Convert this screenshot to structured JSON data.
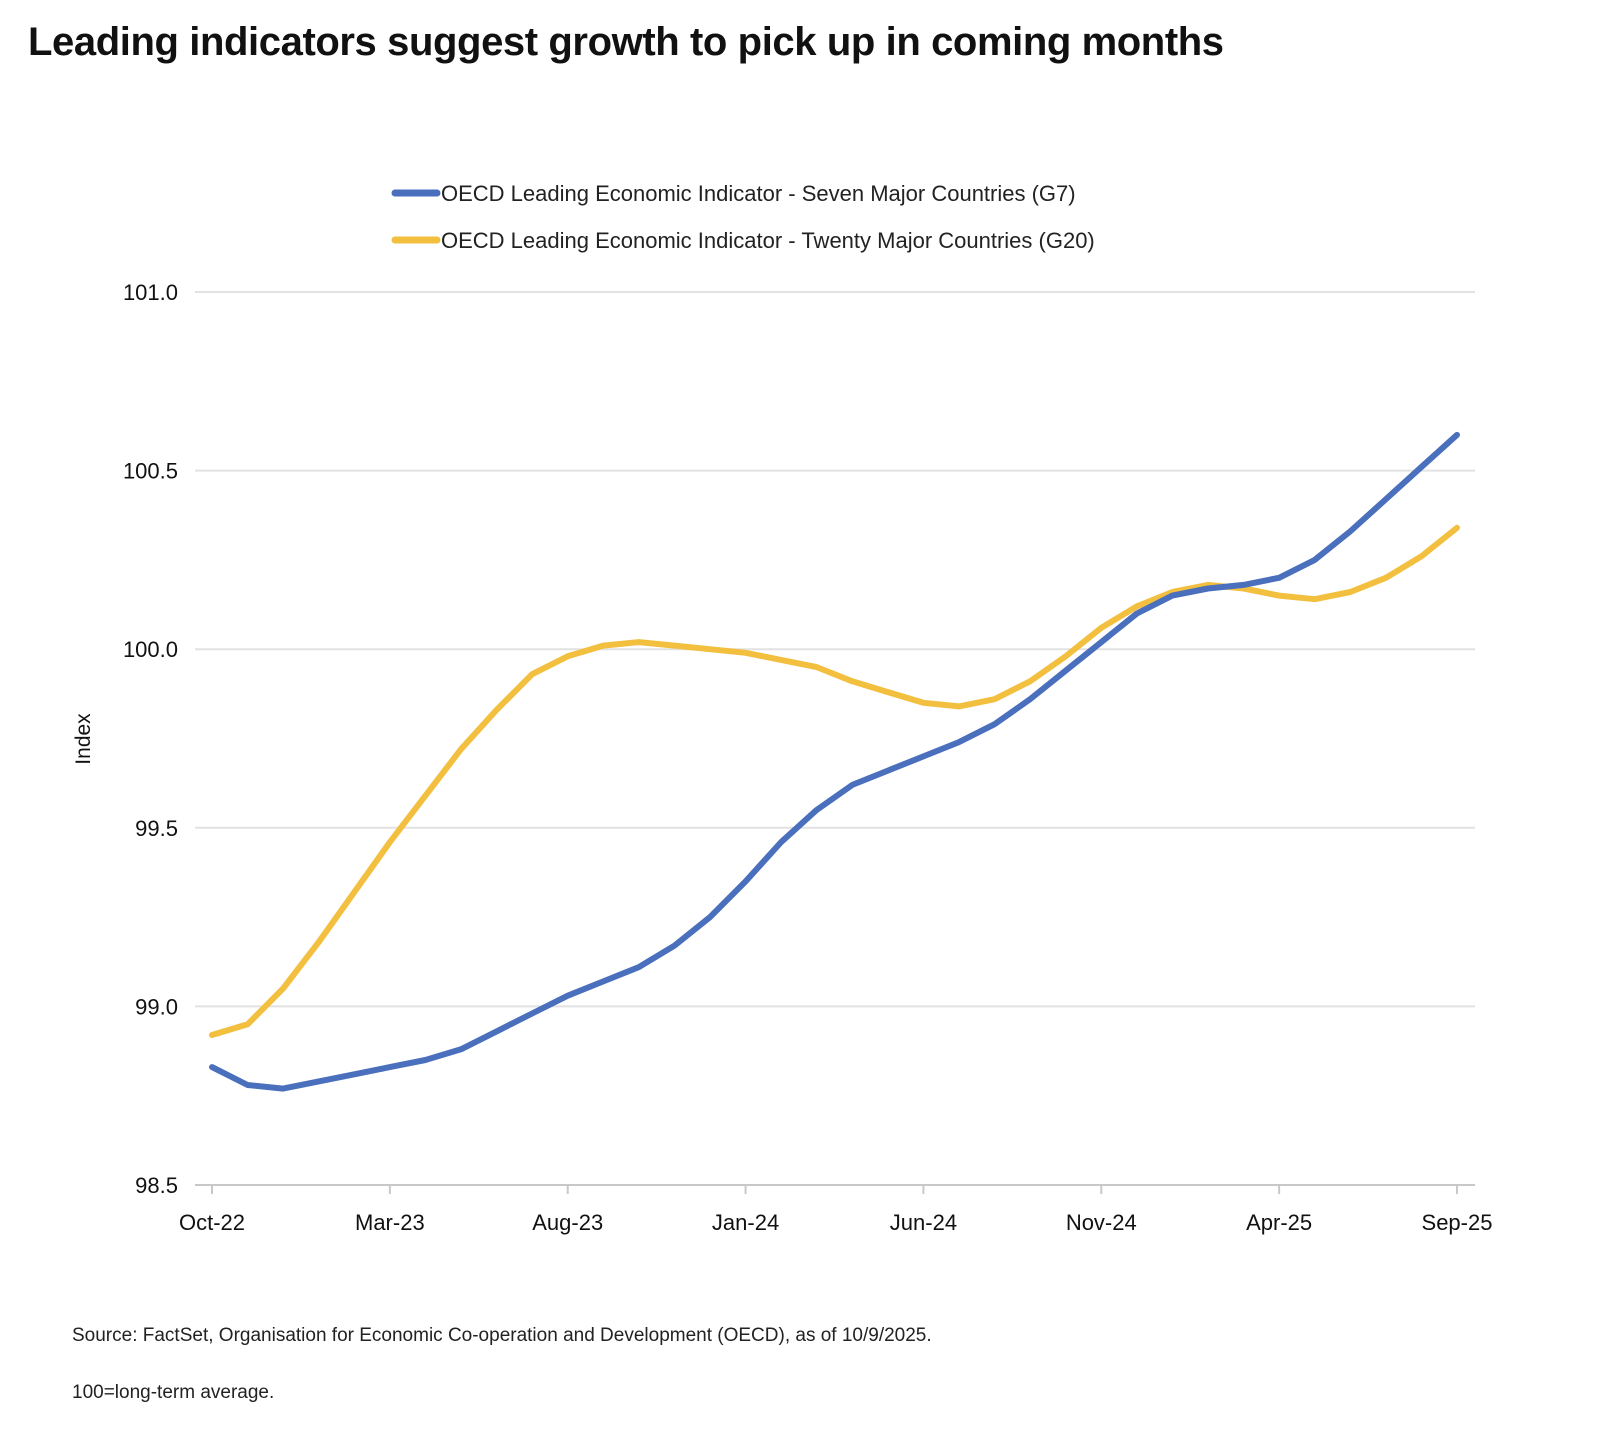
{
  "title": "Leading indicators suggest growth to pick up in coming months",
  "source": "Source: FactSet, Organisation for Economic Co-operation and Development (OECD), as of 10/9/2025.",
  "footnote": "100=long-term average.",
  "chart_data": {
    "type": "line",
    "ylabel": "Index",
    "xlabel": "",
    "ylim": [
      98.5,
      101.0
    ],
    "yticks": [
      "98.5",
      "99.0",
      "99.5",
      "100.0",
      "100.5",
      "101.0"
    ],
    "xticks": [
      "Oct-22",
      "Mar-23",
      "Aug-23",
      "Jan-24",
      "Jun-24",
      "Nov-24",
      "Apr-25",
      "Sep-25"
    ],
    "grid": true,
    "legend_position": "top-center",
    "x": [
      "Oct-22",
      "Nov-22",
      "Dec-22",
      "Jan-23",
      "Feb-23",
      "Mar-23",
      "Apr-23",
      "May-23",
      "Jun-23",
      "Jul-23",
      "Aug-23",
      "Sep-23",
      "Oct-23",
      "Nov-23",
      "Dec-23",
      "Jan-24",
      "Feb-24",
      "Mar-24",
      "Apr-24",
      "May-24",
      "Jun-24",
      "Jul-24",
      "Aug-24",
      "Sep-24",
      "Oct-24",
      "Nov-24",
      "Dec-24",
      "Jan-25",
      "Feb-25",
      "Mar-25",
      "Apr-25",
      "May-25",
      "Jun-25",
      "Jul-25",
      "Aug-25",
      "Sep-25"
    ],
    "series": [
      {
        "name": "OECD Leading Economic Indicator - Seven Major Countries (G7)",
        "color": "#4a6fbd",
        "values": [
          98.83,
          98.78,
          98.77,
          98.79,
          98.81,
          98.83,
          98.85,
          98.88,
          98.93,
          98.98,
          99.03,
          99.07,
          99.11,
          99.17,
          99.25,
          99.35,
          99.46,
          99.55,
          99.62,
          99.66,
          99.7,
          99.74,
          99.79,
          99.86,
          99.94,
          100.02,
          100.1,
          100.15,
          100.17,
          100.18,
          100.2,
          100.25,
          100.33,
          100.42,
          100.51,
          100.6
        ]
      },
      {
        "name": "OECD Leading Economic Indicator - Twenty Major Countries (G20)",
        "color": "#f2bf3f",
        "values": [
          98.92,
          98.95,
          99.05,
          99.18,
          99.32,
          99.46,
          99.59,
          99.72,
          99.83,
          99.93,
          99.98,
          100.01,
          100.02,
          100.01,
          100.0,
          99.99,
          99.97,
          99.95,
          99.91,
          99.88,
          99.85,
          99.84,
          99.86,
          99.91,
          99.98,
          100.06,
          100.12,
          100.16,
          100.18,
          100.17,
          100.15,
          100.14,
          100.16,
          100.2,
          100.26,
          100.34
        ]
      }
    ]
  }
}
